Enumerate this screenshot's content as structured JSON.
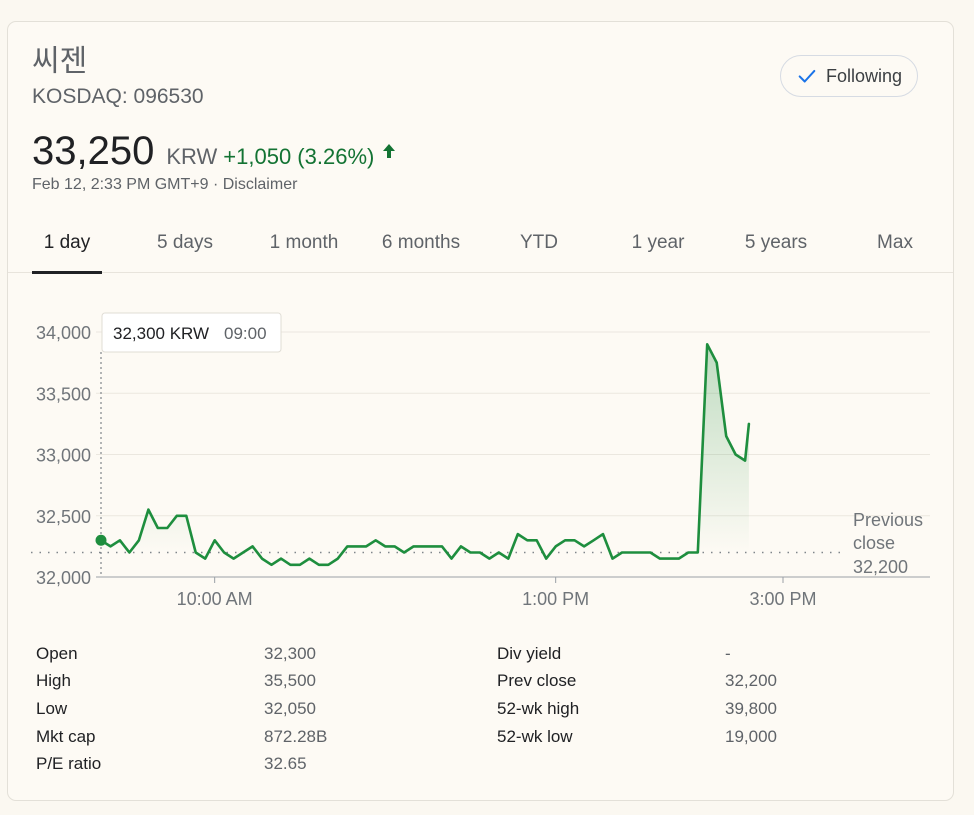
{
  "header": {
    "company_name": "씨젠",
    "ticker": "KOSDAQ: 096530",
    "follow_label": "Following",
    "price": "33,250",
    "currency": "KRW",
    "change": "+1,050 (3.26%)",
    "timestamp": "Feb 12, 2:33 PM GMT+9 · Disclaimer"
  },
  "colors": {
    "positive": "#137333",
    "line": "#1e8e3e",
    "follow_check": "#1a73e8"
  },
  "tabs": [
    {
      "label": "1 day",
      "active": true
    },
    {
      "label": "5 days",
      "active": false
    },
    {
      "label": "1 month",
      "active": false
    },
    {
      "label": "6 months",
      "active": false
    },
    {
      "label": "YTD",
      "active": false
    },
    {
      "label": "1 year",
      "active": false
    },
    {
      "label": "5 years",
      "active": false
    },
    {
      "label": "Max",
      "active": false
    }
  ],
  "chart_data": {
    "type": "line",
    "ylim": [
      32000,
      34000
    ],
    "y_ticks": [
      {
        "value": 32000,
        "label": "32,000"
      },
      {
        "value": 32500,
        "label": "32,500"
      },
      {
        "value": 33000,
        "label": "33,000"
      },
      {
        "value": 33500,
        "label": "33,500"
      },
      {
        "value": 34000,
        "label": "34,000"
      }
    ],
    "x_range_minutes": [
      540,
      930
    ],
    "x_ticks": [
      {
        "minute": 600,
        "label": "10:00 AM"
      },
      {
        "minute": 780,
        "label": "1:00 PM"
      },
      {
        "minute": 900,
        "label": "3:00 PM"
      }
    ],
    "previous_close": {
      "value": 32200,
      "label_line1": "Previous",
      "label_line2": "close",
      "label_value": "32,200"
    },
    "tooltip": {
      "price": "32,300 KRW",
      "time": "09:00",
      "minute": 540,
      "value": 32300
    },
    "series": [
      {
        "points": [
          [
            540,
            32300
          ],
          [
            545,
            32250
          ],
          [
            550,
            32300
          ],
          [
            555,
            32200
          ],
          [
            560,
            32300
          ],
          [
            565,
            32550
          ],
          [
            570,
            32400
          ],
          [
            575,
            32400
          ],
          [
            580,
            32500
          ],
          [
            585,
            32500
          ],
          [
            590,
            32200
          ],
          [
            595,
            32150
          ],
          [
            600,
            32300
          ],
          [
            605,
            32200
          ],
          [
            610,
            32150
          ],
          [
            615,
            32200
          ],
          [
            620,
            32250
          ],
          [
            625,
            32150
          ],
          [
            630,
            32100
          ],
          [
            635,
            32150
          ],
          [
            640,
            32100
          ],
          [
            645,
            32100
          ],
          [
            650,
            32150
          ],
          [
            655,
            32100
          ],
          [
            660,
            32100
          ],
          [
            665,
            32150
          ],
          [
            670,
            32250
          ],
          [
            675,
            32250
          ],
          [
            680,
            32250
          ],
          [
            685,
            32300
          ],
          [
            690,
            32250
          ],
          [
            695,
            32250
          ],
          [
            700,
            32200
          ],
          [
            705,
            32250
          ],
          [
            710,
            32250
          ],
          [
            715,
            32250
          ],
          [
            720,
            32250
          ],
          [
            725,
            32150
          ],
          [
            730,
            32250
          ],
          [
            735,
            32200
          ],
          [
            740,
            32200
          ],
          [
            745,
            32150
          ],
          [
            750,
            32200
          ],
          [
            755,
            32150
          ],
          [
            760,
            32350
          ],
          [
            765,
            32300
          ],
          [
            770,
            32300
          ],
          [
            775,
            32150
          ],
          [
            780,
            32250
          ],
          [
            785,
            32300
          ],
          [
            790,
            32300
          ],
          [
            795,
            32250
          ],
          [
            800,
            32300
          ],
          [
            805,
            32350
          ],
          [
            810,
            32150
          ],
          [
            815,
            32200
          ],
          [
            820,
            32200
          ],
          [
            825,
            32200
          ],
          [
            830,
            32200
          ],
          [
            835,
            32150
          ],
          [
            840,
            32150
          ],
          [
            845,
            32150
          ],
          [
            850,
            32200
          ],
          [
            855,
            32200
          ],
          [
            860,
            33900
          ],
          [
            865,
            33750
          ],
          [
            870,
            33150
          ],
          [
            875,
            33000
          ],
          [
            880,
            32950
          ],
          [
            882,
            33250
          ]
        ]
      }
    ]
  },
  "stats": {
    "left": [
      {
        "label": "Open",
        "value": "32,300"
      },
      {
        "label": "High",
        "value": "35,500"
      },
      {
        "label": "Low",
        "value": "32,050"
      },
      {
        "label": "Mkt cap",
        "value": "872.28B"
      },
      {
        "label": "P/E ratio",
        "value": "32.65"
      }
    ],
    "right": [
      {
        "label": "Div yield",
        "value": "-"
      },
      {
        "label": "Prev close",
        "value": "32,200"
      },
      {
        "label": "52-wk high",
        "value": "39,800"
      },
      {
        "label": "52-wk low",
        "value": "19,000"
      }
    ]
  }
}
